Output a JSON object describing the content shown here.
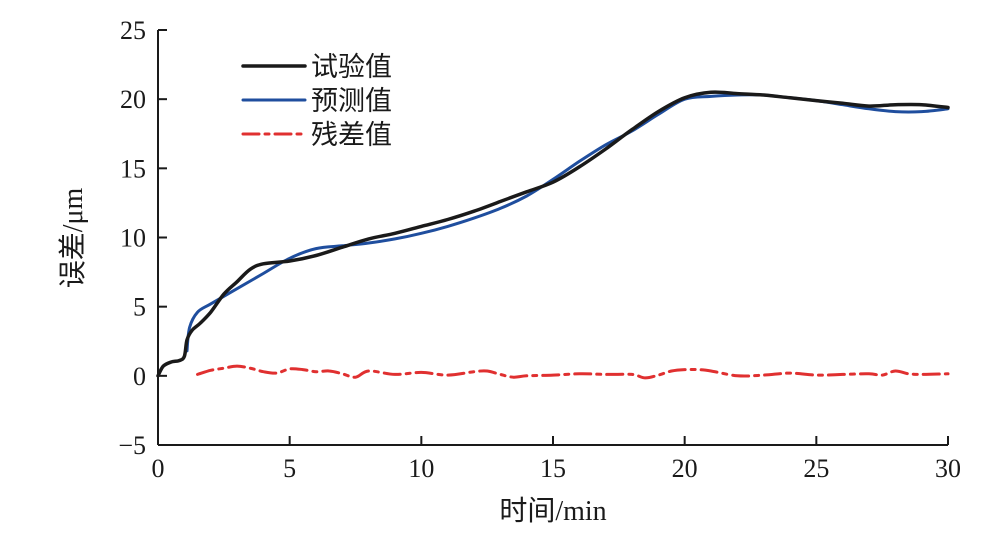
{
  "chart_data": {
    "type": "line",
    "title": "",
    "xlabel": "时间/min",
    "ylabel": "误差/μm",
    "xlim": [
      0,
      30
    ],
    "ylim": [
      -5,
      25
    ],
    "xticks": [
      0,
      5,
      10,
      15,
      20,
      25,
      30
    ],
    "yticks": [
      -5,
      0,
      5,
      10,
      15,
      20,
      25
    ],
    "xtick_labels": [
      "0",
      "5",
      "10",
      "15",
      "20",
      "25",
      "30"
    ],
    "ytick_labels": [
      "−5",
      "0",
      "5",
      "10",
      "15",
      "20",
      "25"
    ],
    "grid": false,
    "legend_position": "top-left",
    "series": [
      {
        "name": "试验值",
        "color": "#1a1a1a",
        "line_style": "solid",
        "x": [
          0,
          0.2,
          0.5,
          0.8,
          1.0,
          1.1,
          1.3,
          1.6,
          2.0,
          2.5,
          3.0,
          3.5,
          4.0,
          5.0,
          6.0,
          7.0,
          8.0,
          9.0,
          10.0,
          11.0,
          12.0,
          13.0,
          14.0,
          15.0,
          16.0,
          17.0,
          18.0,
          19.0,
          20.0,
          21.0,
          22.0,
          23.0,
          24.0,
          25.0,
          26.0,
          27.0,
          28.0,
          29.0,
          30.0
        ],
        "y": [
          0,
          0.7,
          1.0,
          1.1,
          1.4,
          2.6,
          3.3,
          3.8,
          4.6,
          5.9,
          6.8,
          7.7,
          8.1,
          8.3,
          8.7,
          9.3,
          9.9,
          10.3,
          10.8,
          11.3,
          11.9,
          12.6,
          13.3,
          14.0,
          15.1,
          16.4,
          17.8,
          19.1,
          20.1,
          20.5,
          20.4,
          20.3,
          20.1,
          19.9,
          19.7,
          19.5,
          19.6,
          19.6,
          19.4
        ]
      },
      {
        "name": "预测值",
        "color": "#1f4e9e",
        "line_style": "solid",
        "x": [
          1.1,
          1.2,
          1.5,
          2.0,
          3.0,
          4.0,
          5.0,
          6.0,
          7.0,
          8.0,
          9.0,
          10.0,
          11.0,
          12.0,
          13.0,
          14.0,
          15.0,
          16.0,
          17.0,
          18.0,
          19.0,
          20.0,
          21.0,
          22.0,
          23.0,
          24.0,
          25.0,
          26.0,
          27.0,
          28.0,
          29.0,
          30.0
        ],
        "y": [
          1.8,
          3.5,
          4.6,
          5.2,
          6.3,
          7.4,
          8.5,
          9.2,
          9.4,
          9.6,
          9.9,
          10.3,
          10.8,
          11.4,
          12.1,
          13.0,
          14.2,
          15.5,
          16.7,
          17.7,
          18.9,
          20.0,
          20.2,
          20.3,
          20.3,
          20.1,
          19.9,
          19.6,
          19.3,
          19.1,
          19.1,
          19.3
        ]
      },
      {
        "name": "残差值",
        "color": "#e03030",
        "line_style": "dash-dot",
        "x": [
          1.5,
          2.0,
          2.5,
          3.0,
          3.5,
          4.0,
          4.5,
          5.0,
          5.5,
          6.0,
          6.5,
          7.0,
          7.5,
          8.0,
          9.0,
          10.0,
          11.0,
          12.0,
          12.5,
          13.0,
          13.5,
          14.0,
          15.0,
          16.0,
          17.0,
          18.0,
          18.5,
          19.0,
          19.5,
          20.0,
          20.5,
          21.0,
          22.0,
          23.0,
          24.0,
          25.0,
          26.0,
          27.0,
          27.5,
          28.0,
          28.5,
          29.0,
          30.0
        ],
        "y": [
          0.1,
          0.4,
          0.55,
          0.7,
          0.55,
          0.3,
          0.2,
          0.5,
          0.45,
          0.3,
          0.35,
          0.15,
          -0.1,
          0.35,
          0.1,
          0.25,
          0.05,
          0.3,
          0.35,
          0.1,
          -0.1,
          0.0,
          0.05,
          0.15,
          0.1,
          0.1,
          -0.15,
          0.05,
          0.35,
          0.45,
          0.45,
          0.35,
          0.0,
          0.05,
          0.2,
          0.05,
          0.1,
          0.15,
          0.05,
          0.35,
          0.15,
          0.1,
          0.15
        ]
      }
    ]
  }
}
